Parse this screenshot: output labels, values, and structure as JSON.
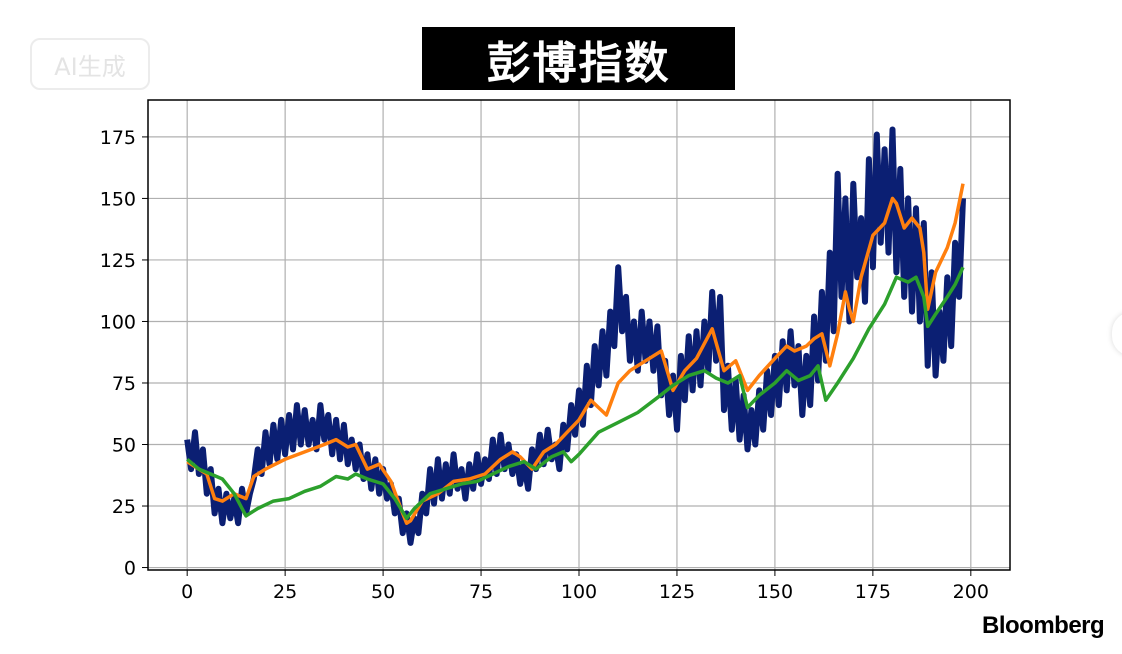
{
  "watermark": "AI生成",
  "logo": "Bloomberg",
  "chart_data": {
    "type": "line",
    "title": "彭博指数",
    "xlabel": "",
    "ylabel": "",
    "xlim": [
      -10,
      210
    ],
    "ylim": [
      -1,
      190
    ],
    "xticks": [
      0,
      25,
      50,
      75,
      100,
      125,
      150,
      175,
      200
    ],
    "yticks": [
      0,
      25,
      50,
      75,
      100,
      125,
      150,
      175
    ],
    "grid": true,
    "legend": "none",
    "series": [
      {
        "color": "#0b1f73",
        "x_step": 1,
        "values": [
          52,
          40,
          55,
          38,
          48,
          30,
          40,
          22,
          32,
          18,
          30,
          20,
          28,
          18,
          32,
          22,
          30,
          36,
          48,
          38,
          55,
          42,
          58,
          44,
          60,
          46,
          62,
          48,
          66,
          50,
          64,
          50,
          60,
          48,
          66,
          52,
          62,
          46,
          60,
          44,
          58,
          42,
          52,
          40,
          50,
          36,
          46,
          32,
          44,
          30,
          40,
          28,
          34,
          22,
          28,
          14,
          22,
          10,
          20,
          14,
          30,
          22,
          40,
          26,
          44,
          28,
          42,
          30,
          46,
          32,
          40,
          28,
          42,
          32,
          46,
          34,
          44,
          36,
          52,
          38,
          54,
          40,
          50,
          38,
          46,
          34,
          42,
          32,
          48,
          40,
          54,
          42,
          56,
          44,
          50,
          40,
          58,
          48,
          66,
          54,
          72,
          58,
          82,
          66,
          90,
          74,
          96,
          78,
          104,
          90,
          122,
          96,
          110,
          84,
          100,
          80,
          104,
          84,
          100,
          80,
          98,
          70,
          84,
          62,
          78,
          56,
          86,
          68,
          94,
          72,
          96,
          74,
          100,
          80,
          112,
          84,
          110,
          64,
          82,
          56,
          76,
          52,
          70,
          48,
          64,
          50,
          72,
          56,
          80,
          62,
          86,
          66,
          92,
          72,
          96,
          74,
          90,
          62,
          86,
          66,
          102,
          76,
          112,
          84,
          128,
          96,
          160,
          110,
          150,
          100,
          156,
          118,
          142,
          108,
          166,
          122,
          176,
          132,
          170,
          128,
          178,
          120,
          162,
          110,
          150,
          104,
          146,
          100,
          140,
          82,
          120,
          78,
          104,
          84,
          118,
          90,
          132,
          110,
          150
        ]
      },
      {
        "color": "#ff7f0e",
        "x": [
          0,
          3,
          5,
          7,
          9,
          12,
          15,
          17,
          20,
          25,
          30,
          35,
          38,
          41,
          43,
          46,
          49,
          52,
          55,
          56,
          57,
          60,
          64,
          68,
          72,
          76,
          80,
          83,
          85,
          88,
          91,
          94,
          97,
          100,
          103,
          105,
          107,
          110,
          113,
          117,
          121,
          124,
          127,
          130,
          134,
          137,
          140,
          143,
          146,
          150,
          153,
          155,
          158,
          160,
          162,
          164,
          166,
          168,
          169,
          170,
          172,
          175,
          178,
          180,
          181,
          183,
          185,
          187,
          188,
          189,
          191,
          194,
          196,
          197,
          198
        ],
        "values": [
          43,
          40,
          38,
          28,
          27,
          30,
          28,
          37,
          40,
          44,
          47,
          50,
          52,
          49,
          50,
          40,
          42,
          35,
          22,
          18,
          19,
          27,
          30,
          35,
          36,
          38,
          44,
          47,
          45,
          40,
          47,
          50,
          55,
          60,
          68,
          65,
          62,
          75,
          80,
          84,
          88,
          72,
          80,
          85,
          97,
          80,
          84,
          72,
          78,
          85,
          90,
          88,
          90,
          93,
          95,
          82,
          95,
          112,
          105,
          100,
          118,
          135,
          140,
          150,
          148,
          138,
          142,
          138,
          128,
          105,
          120,
          130,
          140,
          148,
          156
        ]
      },
      {
        "color": "#2ca02c",
        "x": [
          0,
          3,
          6,
          9,
          12,
          15,
          18,
          22,
          26,
          30,
          34,
          38,
          41,
          43,
          46,
          50,
          53,
          56,
          58,
          62,
          66,
          70,
          74,
          78,
          82,
          86,
          89,
          93,
          96,
          98,
          100,
          105,
          110,
          115,
          120,
          124,
          128,
          132,
          135,
          138,
          141,
          143,
          146,
          150,
          153,
          156,
          159,
          161,
          163,
          166,
          170,
          174,
          178,
          181,
          184,
          186,
          188,
          189,
          191,
          194,
          196,
          198
        ],
        "values": [
          44,
          40,
          38,
          36,
          30,
          21,
          24,
          27,
          28,
          31,
          33,
          37,
          36,
          38,
          36,
          34,
          28,
          20,
          24,
          30,
          32,
          34,
          35,
          38,
          41,
          43,
          40,
          45,
          47,
          43,
          46,
          55,
          59,
          63,
          69,
          74,
          78,
          80,
          77,
          75,
          78,
          65,
          70,
          75,
          80,
          76,
          78,
          82,
          68,
          75,
          85,
          97,
          107,
          118,
          116,
          118,
          110,
          98,
          103,
          110,
          115,
          122
        ]
      }
    ]
  }
}
